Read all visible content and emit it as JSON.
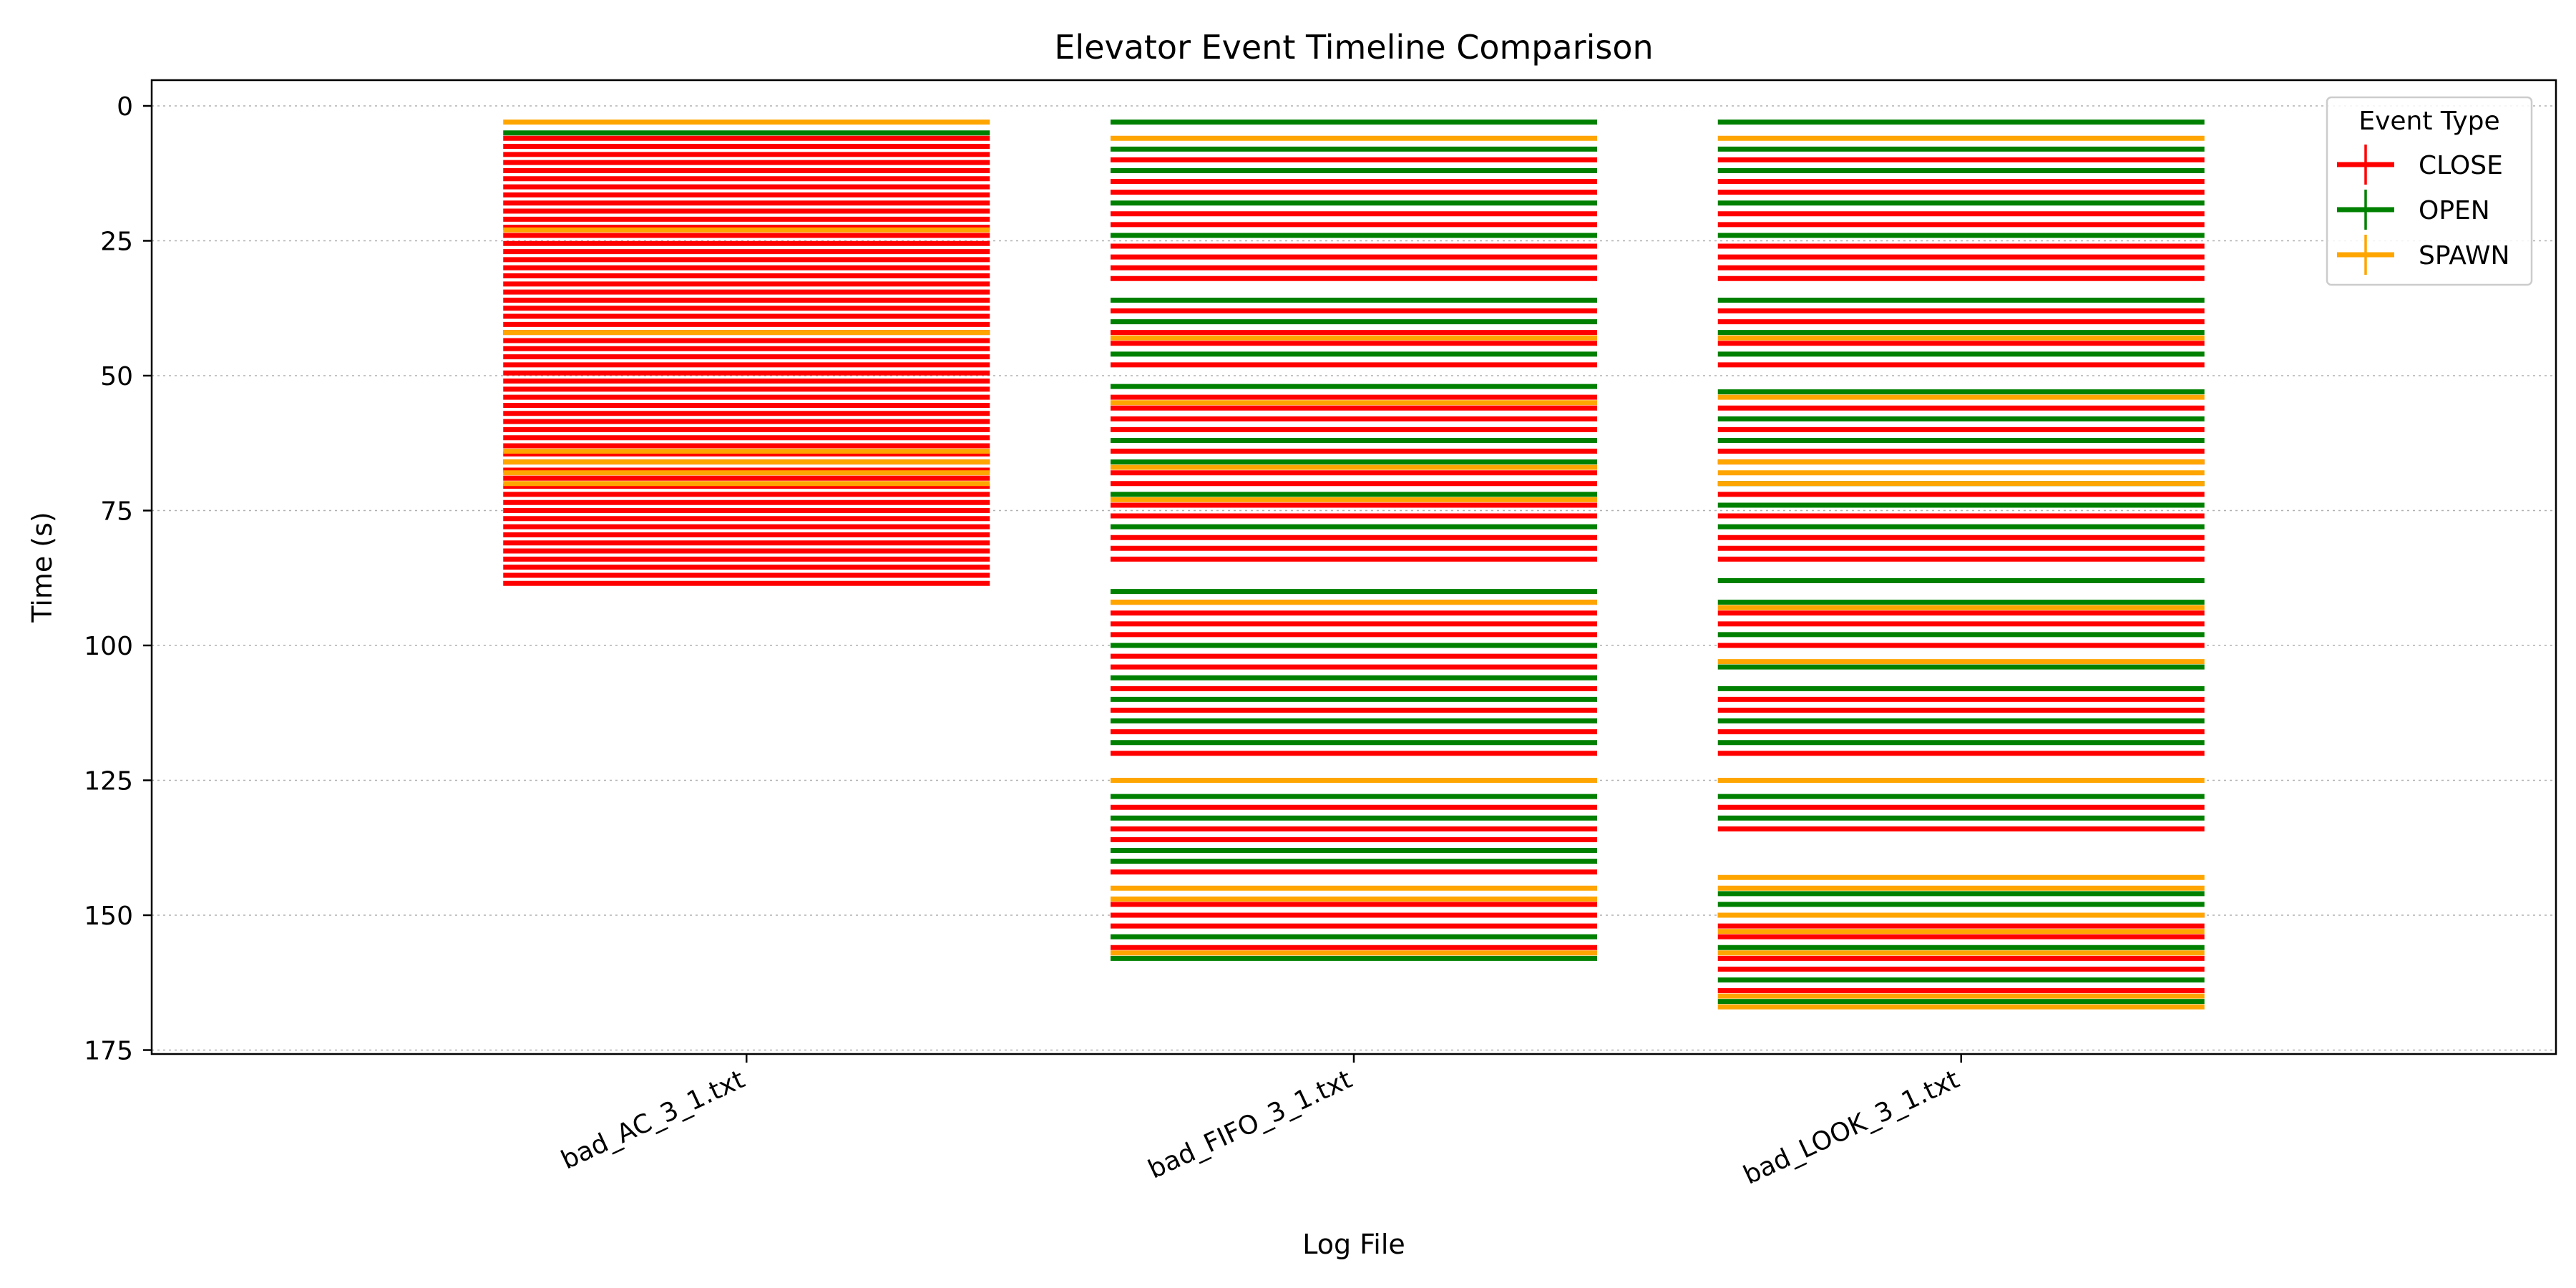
{
  "chart_data": {
    "type": "line",
    "title": "Elevator Event Timeline Comparison",
    "xlabel": "Log File",
    "ylabel": "Time (s)",
    "ylim": [
      0,
      175
    ],
    "y_inverted": true,
    "yticks": [
      0,
      25,
      50,
      75,
      100,
      125,
      150,
      175
    ],
    "grid": "horizontal-dotted",
    "categories": [
      "bad_AC_3_1.txt",
      "bad_FIFO_3_1.txt",
      "bad_LOOK_3_1.txt"
    ],
    "legend": {
      "title": "Event Type",
      "placement": "top-right",
      "entries": [
        {
          "name": "CLOSE",
          "color": "#ff0000"
        },
        {
          "name": "OPEN",
          "color": "#008000"
        },
        {
          "name": "SPAWN",
          "color": "#ffa500"
        }
      ]
    },
    "series": [
      {
        "name": "CLOSE",
        "color": "#ff0000",
        "times": [
          [
            6,
            7.5,
            9,
            10.5,
            12,
            13.5,
            15,
            16.5,
            18,
            19.5,
            21,
            22.5,
            24,
            25.5,
            27,
            28.5,
            30,
            31.5,
            33,
            34.5,
            36,
            37.5,
            39,
            40.5,
            42,
            43.5,
            45,
            46.5,
            48,
            49.5,
            51,
            52.5,
            54,
            55.5,
            57,
            58.5,
            60,
            61.5,
            63,
            64.5,
            66,
            67.5,
            69,
            70.5,
            72,
            73.5,
            75,
            76.5,
            78,
            79.5,
            81,
            82.5,
            84,
            85.5,
            87,
            88.5
          ],
          [
            10,
            14,
            16,
            20,
            22,
            26,
            28,
            30,
            32,
            38,
            42,
            44,
            48,
            54,
            56,
            58,
            60,
            64,
            68,
            70,
            74,
            76,
            80,
            82,
            84,
            92,
            94,
            96,
            98,
            102,
            104,
            108,
            112,
            116,
            120,
            130,
            134,
            136,
            142,
            148,
            150,
            152,
            156
          ],
          [
            10,
            14,
            16,
            20,
            22,
            26,
            28,
            30,
            32,
            38,
            40,
            44,
            48,
            56,
            60,
            64,
            66,
            72,
            76,
            80,
            82,
            84,
            94,
            96,
            100,
            110,
            112,
            116,
            120,
            130,
            134,
            150,
            152,
            154,
            158,
            160,
            164
          ]
        ]
      },
      {
        "name": "OPEN",
        "color": "#008000",
        "times": [
          [
            5
          ],
          [
            3,
            8,
            12,
            18,
            24,
            36,
            40,
            46,
            52,
            62,
            66,
            72,
            78,
            90,
            100,
            106,
            110,
            114,
            118,
            128,
            132,
            138,
            140,
            154,
            158
          ],
          [
            3,
            8,
            12,
            18,
            24,
            36,
            42,
            46,
            53,
            58,
            62,
            70,
            74,
            78,
            88,
            92,
            98,
            104,
            108,
            114,
            118,
            128,
            132,
            146,
            148,
            156,
            162,
            166
          ]
        ]
      },
      {
        "name": "SPAWN",
        "color": "#ffa500",
        "times": [
          [
            3,
            23,
            42,
            64,
            66,
            68,
            70
          ],
          [
            6,
            43,
            55,
            67,
            73,
            92,
            125,
            145,
            147,
            157
          ],
          [
            6,
            43,
            54,
            66,
            68,
            70,
            93,
            103,
            125,
            143,
            145,
            150,
            153,
            157,
            165,
            167
          ]
        ]
      }
    ]
  }
}
